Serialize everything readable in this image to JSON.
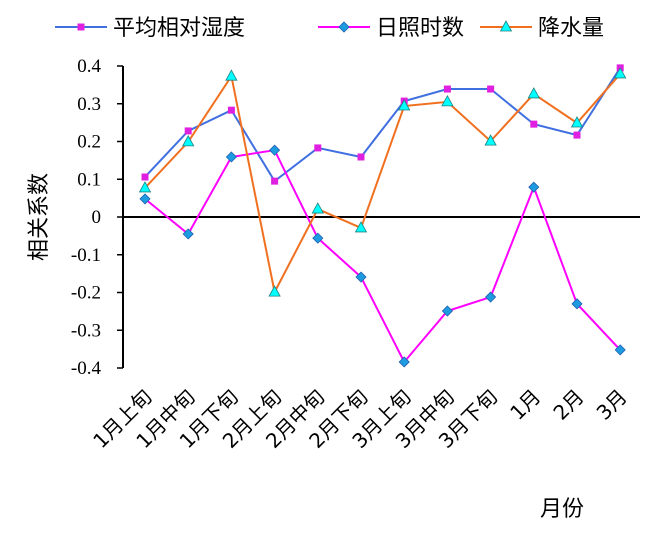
{
  "chart_data": {
    "type": "line",
    "title": "",
    "xlabel": "月份",
    "ylabel": "相关系数",
    "ylim": [
      -0.4,
      0.4
    ],
    "yticks": [
      "0.4",
      "0.3",
      "0.2",
      "0.1",
      "0",
      "-0.1",
      "-0.2",
      "-0.3",
      "-0.4"
    ],
    "ytick_values": [
      0.4,
      0.3,
      0.2,
      0.1,
      0,
      -0.1,
      -0.2,
      -0.3,
      -0.4
    ],
    "categories": [
      "1月上旬",
      "1月中旬",
      "1月下旬",
      "2月上旬",
      "2月中旬",
      "2月下旬",
      "3月上旬",
      "3月中旬",
      "3月下旬",
      "1月",
      "2月",
      "3月"
    ],
    "legend_position": "top",
    "grid": false,
    "series": [
      {
        "name": "平均相对湿度",
        "color": "#3F6FE0",
        "marker": "square",
        "marker_color": "#E020E0",
        "values": [
          0.106,
          0.228,
          0.283,
          0.095,
          0.183,
          0.159,
          0.307,
          0.339,
          0.339,
          0.246,
          0.217,
          0.395
        ]
      },
      {
        "name": "日照时数",
        "color": "#FF00FF",
        "marker": "diamond",
        "marker_color": "#1E9BE0",
        "values": [
          0.048,
          -0.045,
          0.159,
          0.177,
          -0.056,
          -0.159,
          -0.384,
          -0.249,
          -0.212,
          0.079,
          -0.23,
          -0.352
        ]
      },
      {
        "name": "降水量",
        "color": "#F07020",
        "marker": "triangle",
        "marker_color": "#00FFFF",
        "values": [
          0.077,
          0.199,
          0.373,
          -0.199,
          0.021,
          -0.029,
          0.294,
          0.305,
          0.201,
          0.326,
          0.249,
          0.379
        ]
      }
    ]
  }
}
